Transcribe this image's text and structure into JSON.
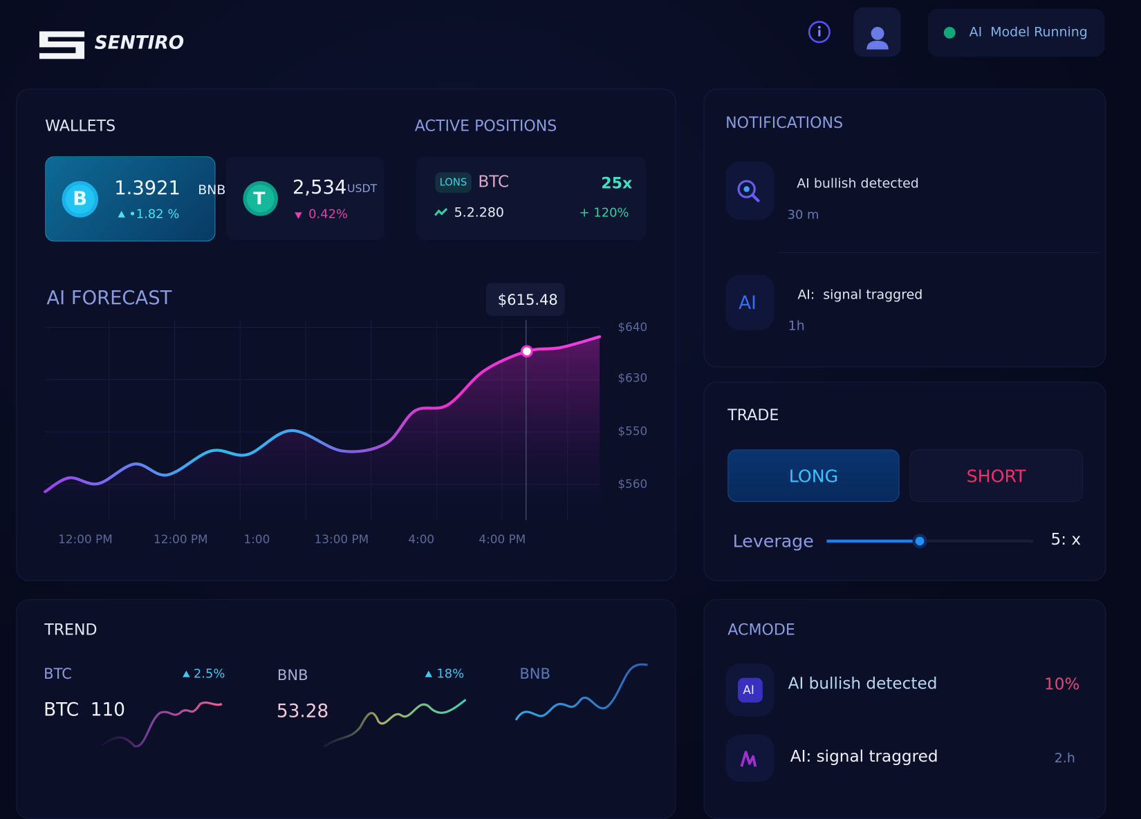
{
  "header": {
    "brand": "SENTIRO",
    "status": "AI  Model Running"
  },
  "wallets": {
    "title": "WALLETS",
    "items": [
      {
        "icon": "B",
        "amount": "1.3921",
        "unit": "BNB",
        "change": "•1.82 %"
      },
      {
        "icon": "T",
        "amount": "2,534",
        "unit": "USDT",
        "change": "0.42%"
      }
    ]
  },
  "positions": {
    "title": "ACTIVE POSITIONS",
    "tag": "LONS",
    "asset": "BTC",
    "leverage": "25x",
    "price": "5.2.280",
    "pnl": "+ 120%"
  },
  "forecast": {
    "title": "AI FORECAST",
    "tooltip": "$615.48",
    "y_labels": [
      "$640",
      "$630",
      "$550",
      "$560"
    ],
    "x_labels": [
      "12:00 PM",
      "12:00 PM",
      "1:00",
      "13:00 PM",
      "4:00",
      "4:00 PM"
    ]
  },
  "notifications": {
    "title": "NOTIFICATIONS",
    "items": [
      {
        "text": "AI bullish detected",
        "time": "30 m"
      },
      {
        "icon": "AI",
        "text": "AI:  signal traggred",
        "time": "1h"
      }
    ]
  },
  "trade": {
    "title": "TRADE",
    "long": "LONG",
    "short": "SHORT",
    "leverage_label": "Leverage",
    "leverage_value": "5: x"
  },
  "trend": {
    "title": "TREND",
    "items": [
      {
        "name": "BTC",
        "change": "2.5%",
        "value": "BTC  110"
      },
      {
        "name": "BNB",
        "change": "18%",
        "value": "53.28"
      },
      {
        "name": "BNB"
      }
    ]
  },
  "acmode": {
    "title": "ACMODE",
    "items": [
      {
        "icon": "AI",
        "text": "AI bullish detected",
        "value": "10%"
      },
      {
        "text": "AI: signal traggred",
        "value": "2.h"
      }
    ]
  }
}
